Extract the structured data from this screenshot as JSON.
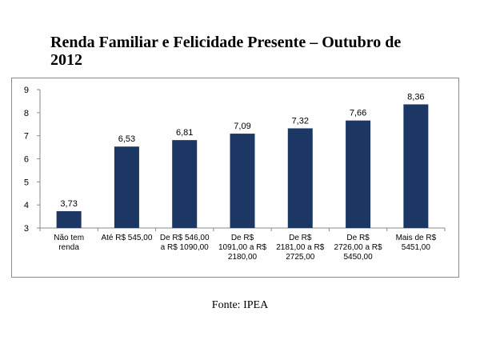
{
  "title": "Renda Familiar e Felicidade Presente – Outubro de 2012",
  "source": "Fonte: IPEA",
  "chart_data": {
    "type": "bar",
    "title": "Renda Familiar e Felicidade Presente – Outubro de 2012",
    "xlabel": "",
    "ylabel": "",
    "ylim": [
      3,
      9
    ],
    "yticks": [
      3,
      4,
      5,
      6,
      7,
      8,
      9
    ],
    "grid": false,
    "legend": "none",
    "bar_color": "#1c3764",
    "categories": [
      [
        "Não tem",
        "renda"
      ],
      [
        "Até R$ 545,00"
      ],
      [
        "De R$ 546,00",
        "a R$ 1090,00"
      ],
      [
        "De R$",
        "1091,00 a R$",
        "2180,00"
      ],
      [
        "De R$",
        "2181,00 a R$",
        "2725,00"
      ],
      [
        "De R$",
        "2726,00 a R$",
        "5450,00"
      ],
      [
        "Mais de R$",
        "5451,00"
      ]
    ],
    "values": [
      3.73,
      6.53,
      6.81,
      7.09,
      7.32,
      7.66,
      8.36
    ],
    "data_labels": [
      "3,73",
      "6,53",
      "6,81",
      "7,09",
      "7,32",
      "7,66",
      "8,36"
    ]
  }
}
